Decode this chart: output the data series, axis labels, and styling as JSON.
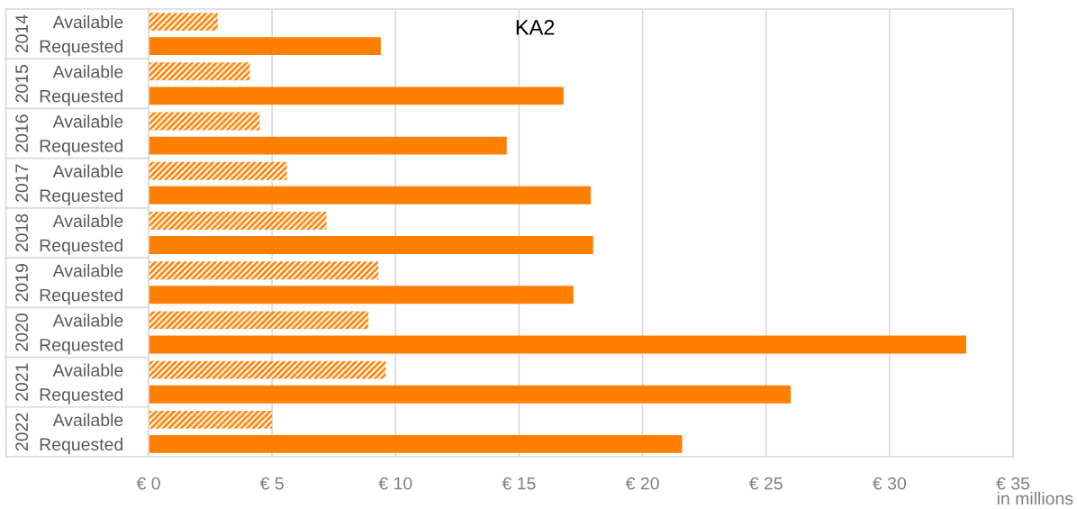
{
  "chart_data": {
    "type": "bar",
    "orientation": "horizontal",
    "title": "KA2",
    "xlabel": "in millions",
    "categories": [
      "2014",
      "2015",
      "2016",
      "2017",
      "2018",
      "2019",
      "2020",
      "2021",
      "2022"
    ],
    "series": [
      {
        "name": "Available",
        "color": "#ff8000",
        "values": [
          2.8,
          4.1,
          4.5,
          5.6,
          7.2,
          9.3,
          8.9,
          9.6,
          5.0
        ]
      },
      {
        "name": "Requested",
        "color": "#ff8000",
        "values": [
          9.4,
          16.8,
          14.5,
          17.9,
          18.0,
          17.2,
          33.1,
          26.0,
          21.6
        ]
      }
    ],
    "xlim": [
      0,
      35
    ],
    "xticks": [
      {
        "value": 0,
        "label": "€ 0"
      },
      {
        "value": 5,
        "label": "€ 5"
      },
      {
        "value": 10,
        "label": "€ 10"
      },
      {
        "value": 15,
        "label": "€ 15"
      },
      {
        "value": 20,
        "label": "€ 20"
      },
      {
        "value": 25,
        "label": "€ 25"
      },
      {
        "value": 30,
        "label": "€ 30"
      },
      {
        "value": 35,
        "label": "€ 35"
      }
    ],
    "grid": "x",
    "legend": false
  }
}
